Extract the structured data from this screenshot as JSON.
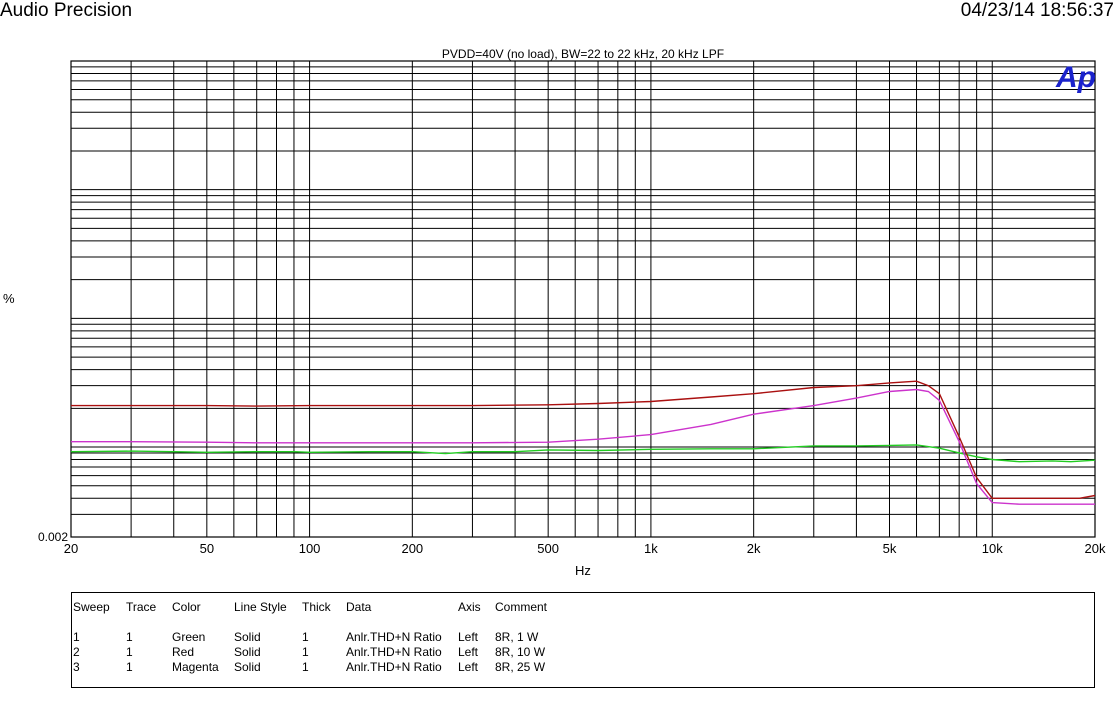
{
  "header": {
    "app": "Audio Precision",
    "datetime": "04/23/14 18:56:37"
  },
  "chart_data": {
    "type": "line",
    "title": "PVDD=40V (no load), BW=22 to 22 kHz, 20 kHz LPF",
    "xlabel": "Hz",
    "ylabel": "%",
    "x_scale": "log",
    "y_scale": "log",
    "xlim": [
      20,
      20000
    ],
    "ylim": [
      0.002,
      10
    ],
    "grid": true,
    "x_ticks": [
      {
        "v": 20,
        "label": "20"
      },
      {
        "v": 50,
        "label": "50"
      },
      {
        "v": 100,
        "label": "100"
      },
      {
        "v": 200,
        "label": "200"
      },
      {
        "v": 500,
        "label": "500"
      },
      {
        "v": 1000,
        "label": "1k"
      },
      {
        "v": 2000,
        "label": "2k"
      },
      {
        "v": 5000,
        "label": "5k"
      },
      {
        "v": 10000,
        "label": "10k"
      },
      {
        "v": 20000,
        "label": "20k"
      }
    ],
    "y_ticks": [
      {
        "v": 0.002,
        "label": "0.002"
      }
    ],
    "series": [
      {
        "name": "8R, 1 W",
        "color": "#22cc22",
        "points": [
          [
            20,
            0.0092
          ],
          [
            30,
            0.0093
          ],
          [
            40,
            0.0092
          ],
          [
            50,
            0.0091
          ],
          [
            70,
            0.0092
          ],
          [
            90,
            0.0092
          ],
          [
            100,
            0.0091
          ],
          [
            150,
            0.0092
          ],
          [
            200,
            0.0092
          ],
          [
            250,
            0.0089
          ],
          [
            300,
            0.0092
          ],
          [
            400,
            0.0092
          ],
          [
            500,
            0.0095
          ],
          [
            700,
            0.0094
          ],
          [
            1000,
            0.0096
          ],
          [
            1500,
            0.0097
          ],
          [
            2000,
            0.0097
          ],
          [
            3000,
            0.0102
          ],
          [
            4000,
            0.0102
          ],
          [
            5000,
            0.0103
          ],
          [
            6000,
            0.0104
          ],
          [
            7000,
            0.0098
          ],
          [
            8000,
            0.009
          ],
          [
            9000,
            0.0084
          ],
          [
            10000,
            0.008
          ],
          [
            12000,
            0.0077
          ],
          [
            15000,
            0.0078
          ],
          [
            17000,
            0.0077
          ],
          [
            20000,
            0.0079
          ]
        ]
      },
      {
        "name": "8R, 10 W",
        "color": "#aa1010",
        "points": [
          [
            20,
            0.021
          ],
          [
            30,
            0.021
          ],
          [
            50,
            0.021
          ],
          [
            70,
            0.0208
          ],
          [
            100,
            0.021
          ],
          [
            150,
            0.021
          ],
          [
            200,
            0.021
          ],
          [
            300,
            0.021
          ],
          [
            500,
            0.0213
          ],
          [
            700,
            0.0218
          ],
          [
            1000,
            0.0226
          ],
          [
            1500,
            0.0245
          ],
          [
            2000,
            0.026
          ],
          [
            3000,
            0.029
          ],
          [
            4000,
            0.03
          ],
          [
            5000,
            0.0315
          ],
          [
            6000,
            0.0325
          ],
          [
            6500,
            0.03
          ],
          [
            7000,
            0.026
          ],
          [
            8000,
            0.012
          ],
          [
            9000,
            0.0058
          ],
          [
            10000,
            0.004
          ],
          [
            12000,
            0.004
          ],
          [
            15000,
            0.004
          ],
          [
            18000,
            0.004
          ],
          [
            20000,
            0.0042
          ]
        ]
      },
      {
        "name": "8R, 25 W",
        "color": "#cc33cc",
        "points": [
          [
            20,
            0.011
          ],
          [
            30,
            0.011
          ],
          [
            50,
            0.0109
          ],
          [
            70,
            0.0108
          ],
          [
            100,
            0.0108
          ],
          [
            150,
            0.0108
          ],
          [
            200,
            0.0108
          ],
          [
            300,
            0.0108
          ],
          [
            500,
            0.0109
          ],
          [
            700,
            0.0115
          ],
          [
            1000,
            0.0125
          ],
          [
            1500,
            0.015
          ],
          [
            2000,
            0.018
          ],
          [
            3000,
            0.021
          ],
          [
            4000,
            0.024
          ],
          [
            5000,
            0.027
          ],
          [
            6000,
            0.028
          ],
          [
            6500,
            0.027
          ],
          [
            7000,
            0.023
          ],
          [
            8000,
            0.011
          ],
          [
            9000,
            0.0052
          ],
          [
            10000,
            0.0037
          ],
          [
            12000,
            0.0036
          ],
          [
            15000,
            0.0036
          ],
          [
            18000,
            0.0036
          ],
          [
            20000,
            0.0036
          ]
        ]
      }
    ]
  },
  "legend": {
    "headers": [
      "Sweep",
      "Trace",
      "Color",
      "Line Style",
      "Thick",
      "Data",
      "Axis",
      "Comment"
    ],
    "rows": [
      [
        "1",
        "1",
        "Green",
        "Solid",
        "1",
        "Anlr.THD+N Ratio",
        "Left",
        "8R, 1 W"
      ],
      [
        "2",
        "1",
        "Red",
        "Solid",
        "1",
        "Anlr.THD+N Ratio",
        "Left",
        "8R, 10 W"
      ],
      [
        "3",
        "1",
        "Magenta",
        "Solid",
        "1",
        "Anlr.THD+N Ratio",
        "Left",
        "8R, 25 W"
      ]
    ]
  }
}
